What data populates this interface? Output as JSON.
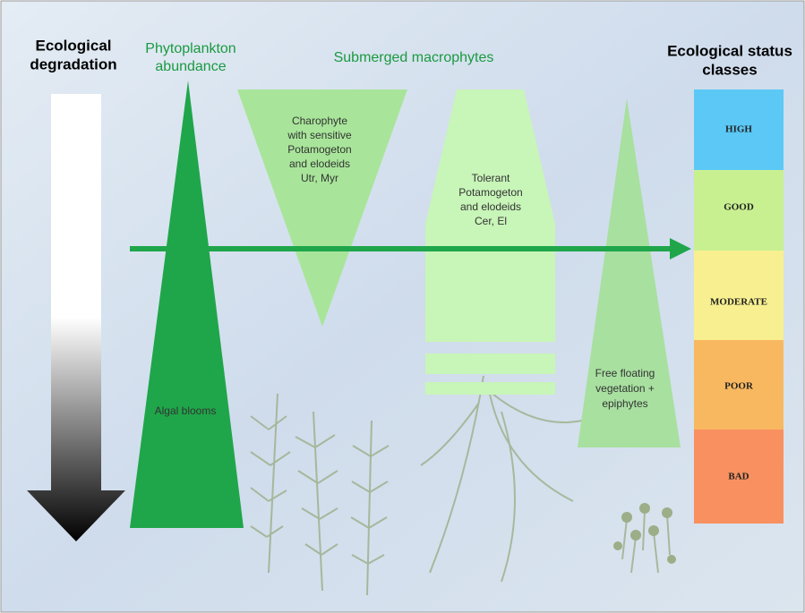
{
  "left_label": [
    "Ecological",
    "degradation"
  ],
  "phytoplankton_label": [
    "Phytoplankton",
    "abundance"
  ],
  "macrophytes_label": "Submerged macrophytes",
  "status_label": [
    "Ecological status",
    "classes"
  ],
  "charophyte_label": [
    "Charophyte",
    "with sensitive",
    "Potamogeton",
    "and elodeids",
    "Utr, Myr"
  ],
  "tolerant_label": [
    "Tolerant",
    "Potamogeton",
    "and elodeids",
    "Cer, El"
  ],
  "algal_label": "Algal blooms",
  "floating_label": [
    "Free floating",
    "vegetation +",
    "epiphytes"
  ],
  "status_classes": [
    "HIGH",
    "GOOD",
    "MODERATE",
    "POOR",
    "BAD"
  ]
}
